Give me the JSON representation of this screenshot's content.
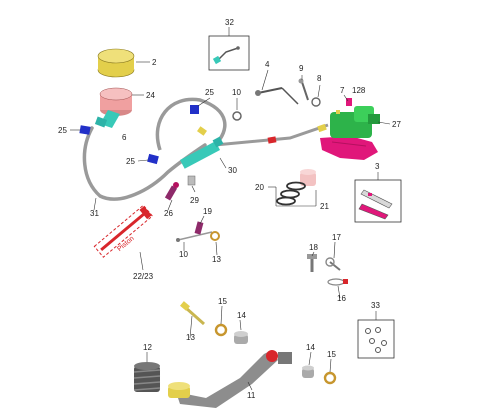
{
  "callouts": {
    "c32": "32",
    "c2": "2",
    "c4": "4",
    "c9": "9",
    "c8": "8",
    "c7": "7",
    "c128": "128",
    "c24": "24",
    "c25a": "25",
    "c25b": "25",
    "c25c": "25",
    "c10a": "10",
    "c27": "27",
    "c6": "6",
    "c30": "30",
    "c3": "3",
    "c20": "20",
    "c21": "21",
    "c26": "26",
    "c29": "29",
    "c31": "31",
    "c19": "19",
    "c10b": "10",
    "c13a": "13",
    "c2223": "22/23",
    "c18": "18",
    "c17": "17",
    "c16": "16",
    "c15a": "15",
    "c14a": "14",
    "c13b": "13",
    "c33": "33",
    "c12": "12",
    "c14b": "14",
    "c15b": "15",
    "c11": "11"
  },
  "stamp_text": "Piston",
  "colors": {
    "green": "#2db34a",
    "magenta": "#e0177a",
    "blue": "#2230c8",
    "teal": "#38c9b8",
    "gold": "#e3cf4b",
    "pink_cap": "#f0a0a0",
    "grey": "#9a9a9a",
    "red_stamp": "#d8262b"
  },
  "icons": [
    "reservoir-cap-icon",
    "reservoir-icon",
    "master-cylinder-icon",
    "caliper-bracket-icon",
    "hose-icon",
    "pedal-icon",
    "spring-icon",
    "bolt-icon",
    "washer-icon",
    "brake-pad-icon",
    "oring-kit-icon"
  ]
}
